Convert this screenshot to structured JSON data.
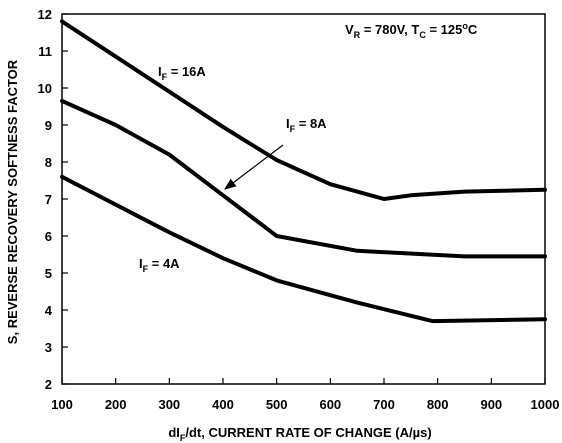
{
  "chart_data": {
    "type": "line",
    "title": "",
    "xlabel": {
      "main": "dI",
      "sub": "F",
      "rest": "/dt, CURRENT RATE OF CHANGE (A/µs)"
    },
    "ylabel": "S, REVERSE RECOVERY SOFTNESS FACTOR",
    "xlim": [
      100,
      1000
    ],
    "ylim": [
      2,
      12
    ],
    "x_ticks": [
      100,
      200,
      300,
      400,
      500,
      600,
      700,
      800,
      900,
      1000
    ],
    "y_ticks": [
      2,
      3,
      4,
      5,
      6,
      7,
      8,
      9,
      10,
      11,
      12
    ],
    "grid": false,
    "condition_label": {
      "v_main": "V",
      "v_sub": "R",
      "v_value": " = 780V, ",
      "t_main": "T",
      "t_sub": "C",
      "t_value": " = 125",
      "t_sup": "o",
      "t_unit": "C"
    },
    "series": [
      {
        "name": "I_F = 16A",
        "label_main": "I",
        "label_sub": "F",
        "label_value": " = 16A",
        "x": [
          100,
          200,
          300,
          400,
          500,
          600,
          700,
          750,
          850,
          1000
        ],
        "y": [
          11.8,
          10.85,
          9.9,
          8.95,
          8.05,
          7.4,
          7.0,
          7.1,
          7.2,
          7.25
        ]
      },
      {
        "name": "I_F = 8A",
        "label_main": "I",
        "label_sub": "F",
        "label_value": " = 8A",
        "x": [
          100,
          200,
          300,
          400,
          500,
          650,
          850,
          1000
        ],
        "y": [
          9.65,
          9.0,
          8.2,
          7.1,
          6.0,
          5.6,
          5.45,
          5.45
        ]
      },
      {
        "name": "I_F = 4A",
        "label_main": "I",
        "label_sub": "F",
        "label_value": " = 4A",
        "x": [
          100,
          200,
          300,
          400,
          500,
          650,
          790,
          1000
        ],
        "y": [
          7.6,
          6.85,
          6.1,
          5.4,
          4.8,
          4.2,
          3.7,
          3.75
        ]
      }
    ]
  }
}
